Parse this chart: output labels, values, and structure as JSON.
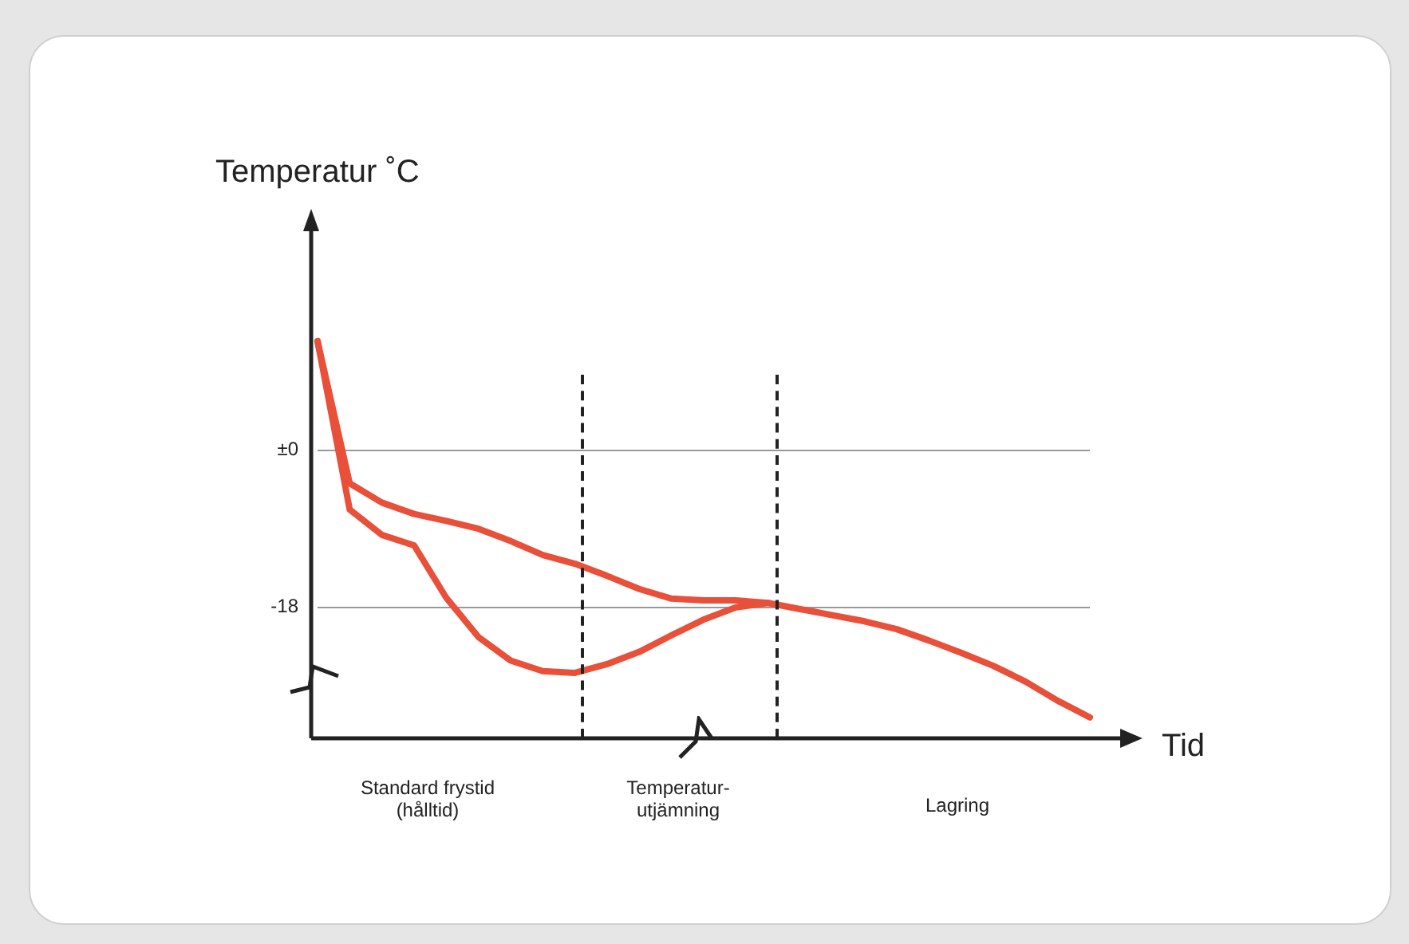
{
  "chart_data": {
    "type": "line",
    "ylabel": "Temperatur ˚C",
    "xlabel": "Tid",
    "categories": [
      null,
      null,
      null,
      null,
      null,
      null,
      null,
      null,
      null,
      null,
      null,
      null,
      null,
      null,
      null,
      null,
      null,
      null,
      null,
      null,
      null,
      null,
      null,
      null,
      null
    ],
    "ylim": [
      -33,
      26
    ],
    "yticks": [
      {
        "value": 0,
        "label": "±0"
      },
      -18
    ],
    "tick_labels": "y",
    "grid": "y",
    "marker": "none",
    "line_style": "solid",
    "series": [
      {
        "color": "#e8503a",
        "values": [
          12.5,
          -3.8,
          -6.0,
          -7.3,
          -8.1,
          -9.0,
          -10.4,
          -12.0,
          -13.0,
          -14.4,
          -15.9,
          -17.0,
          -17.2,
          -17.2,
          -17.5,
          -18.2,
          -18.9,
          -19.6,
          -20.5,
          -21.8,
          -23.2,
          -24.7,
          -26.5,
          -28.7,
          -30.6
        ]
      },
      {
        "color": "#e8503a",
        "values": [
          12.5,
          -6.8,
          -9.7,
          -10.9,
          -16.9,
          -21.4,
          -24.1,
          -25.3,
          -25.5,
          -24.5,
          -23.1,
          -21.2,
          -19.4,
          -18.0,
          -17.5,
          null,
          null,
          null,
          null,
          null,
          null,
          null,
          null,
          null,
          null
        ]
      }
    ],
    "annotations": [
      "Standard frystid\n(hålltid)",
      "Temperatur-\nutjämning",
      "Lagring"
    ]
  }
}
